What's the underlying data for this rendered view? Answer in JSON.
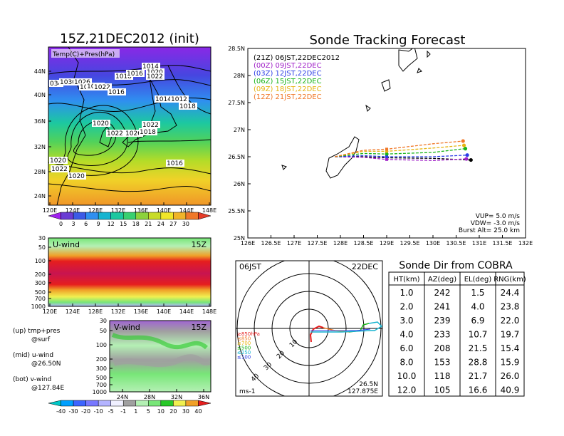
{
  "map_panel": {
    "title": "15Z,21DEC2012 (init)",
    "field_label": "Temp(C)+Pres(hPa)",
    "lon_ticks": [
      "120E",
      "124E",
      "128E",
      "132E",
      "136E",
      "140E",
      "144E",
      "148E"
    ],
    "lat_ticks": [
      "44N",
      "40N",
      "36N",
      "32N",
      "28N",
      "24N"
    ],
    "isobar_labels": [
      "034",
      "1030",
      "1026",
      "1024",
      "1020",
      "1022",
      "1018",
      "1016",
      "1014",
      "1020",
      "1022",
      "1016",
      "1014",
      "1012",
      "1018",
      "1020",
      "1022",
      "1026",
      "1022",
      "1018",
      "1016",
      "1020",
      "1022",
      "1020"
    ],
    "colorbar_ticks": [
      "0",
      "3",
      "6",
      "9",
      "12",
      "15",
      "18",
      "21",
      "24",
      "27",
      "30"
    ],
    "colorbar_colors": [
      "#a020f0",
      "#6a3cd4",
      "#3c5ae6",
      "#2f8ff0",
      "#17b4d0",
      "#1cc8a0",
      "#38d070",
      "#8cd23c",
      "#c8dc28",
      "#f0e628",
      "#f0b428",
      "#f07828",
      "#e63c28"
    ]
  },
  "uwind_panel": {
    "title": "U-wind",
    "time_label": "15Z",
    "p_ticks": [
      "30",
      "50",
      "100",
      "200",
      "300",
      "500",
      "700",
      "1000"
    ],
    "lon_ticks": [
      "120E",
      "124E",
      "128E",
      "132E",
      "136E",
      "140E",
      "144E",
      "148E"
    ]
  },
  "vwind_panel": {
    "title": "V-wind",
    "time_label": "15Z",
    "p_ticks": [
      "30",
      "50",
      "100",
      "200",
      "300",
      "500",
      "700",
      "1000"
    ],
    "lat_ticks": [
      "24N",
      "28N",
      "32N",
      "36N"
    ]
  },
  "legend_text": [
    "(up) tmp+pres",
    "@surf",
    "(mid) u-wind",
    "@26.50N",
    "(bot) v-wind",
    "@127.84E"
  ],
  "wind_colorbar": {
    "ticks": [
      "-40",
      "-30",
      "-20",
      "-10",
      "-5",
      "-1",
      "1",
      "5",
      "10",
      "20",
      "30",
      "40"
    ],
    "colors": [
      "#00c8c8",
      "#00a0ff",
      "#3c64ff",
      "#7878ff",
      "#b4b4ff",
      "#f0f0ff",
      "#a0a0a0",
      "#b4f0b4",
      "#78e678",
      "#28c828",
      "#f0f050",
      "#f0a028",
      "#e61e1e"
    ]
  },
  "tracking_panel": {
    "title": "Sonde Tracking Forecast",
    "legend": [
      {
        "label": "(21Z)  06JST,22DEC2012",
        "color": "#000000"
      },
      {
        "label": "(00Z)  09JST,22DEC",
        "color": "#a020c8"
      },
      {
        "label": "(03Z)  12JST,22DEC",
        "color": "#2a3ce6"
      },
      {
        "label": "(06Z)  15JST,22DEC",
        "color": "#19b419"
      },
      {
        "label": "(09Z)  18JST,22DEC",
        "color": "#e6b414"
      },
      {
        "label": "(12Z)  21JST,22DEC",
        "color": "#f07828"
      }
    ],
    "lat_ticks": [
      "28.5N",
      "28N",
      "27.5N",
      "27N",
      "26.5N",
      "26N",
      "25.5N",
      "25N"
    ],
    "lon_ticks": [
      "126E",
      "126.5E",
      "127E",
      "127.5E",
      "128E",
      "128.5E",
      "129E",
      "129.5E",
      "130E",
      "130.5E",
      "131E",
      "131.5E",
      "132E"
    ],
    "params": [
      "VUP=  5.0  m/s",
      "VDW= -3.0  m/s",
      "Burst Alt=  25.0  km"
    ]
  },
  "cobra_panel": {
    "time_label": "06JST",
    "date_label": "22DEC",
    "range_labels": [
      "10",
      "20",
      "30",
      "40"
    ],
    "layer_legend": [
      {
        "label": "≥850hPa",
        "color": "#e61e1e"
      },
      {
        "label": "≤850",
        "color": "#f07828"
      },
      {
        "label": "≤700",
        "color": "#e6b414"
      },
      {
        "label": "≤500",
        "color": "#19b419"
      },
      {
        "label": "≤250",
        "color": "#17b4d0"
      },
      {
        "label": "≤100",
        "color": "#2a3ce6"
      }
    ],
    "unit": "ms-1",
    "location_lat": "26.5N",
    "location_lon": "127.875E"
  },
  "dir_table": {
    "title": "Sonde Dir from COBRA",
    "headers": [
      "HT(km)",
      "AZ(deg)",
      "EL(deg)",
      "RNG(km)"
    ],
    "rows": [
      [
        "1.0",
        "242",
        "1.5",
        "24.4"
      ],
      [
        "2.0",
        "241",
        "4.0",
        "23.8"
      ],
      [
        "3.0",
        "239",
        "6.9",
        "22.0"
      ],
      [
        "4.0",
        "233",
        "10.7",
        "19.7"
      ],
      [
        "6.0",
        "208",
        "21.5",
        "15.4"
      ],
      [
        "8.0",
        "153",
        "28.8",
        "15.9"
      ],
      [
        "10.0",
        "118",
        "21.7",
        "26.0"
      ],
      [
        "12.0",
        "105",
        "16.6",
        "40.9"
      ]
    ]
  },
  "chart_data": [
    {
      "type": "line",
      "title": "Sonde Tracking Forecast",
      "xlim": [
        126,
        132
      ],
      "ylim": [
        25,
        28.5
      ],
      "series": [
        {
          "name": "(21Z)  06JST,22DEC2012",
          "points": [
            [
              127.88,
              26.5
            ],
            [
              128.5,
              26.5
            ],
            [
              129.0,
              26.48
            ],
            [
              130.0,
              26.47
            ],
            [
              130.82,
              26.44
            ]
          ]
        },
        {
          "name": "(00Z)  09JST,22DEC",
          "points": [
            [
              127.88,
              26.5
            ],
            [
              128.5,
              26.49
            ],
            [
              129.0,
              26.45
            ],
            [
              130.0,
              26.43
            ],
            [
              130.72,
              26.46
            ]
          ]
        },
        {
          "name": "(03Z)  12JST,22DEC",
          "points": [
            [
              127.88,
              26.5
            ],
            [
              128.5,
              26.52
            ],
            [
              129.0,
              26.5
            ],
            [
              130.0,
              26.5
            ],
            [
              130.74,
              26.53
            ]
          ]
        },
        {
          "name": "(06Z)  15JST,22DEC",
          "points": [
            [
              127.88,
              26.5
            ],
            [
              128.5,
              26.56
            ],
            [
              129.0,
              26.55
            ],
            [
              130.0,
              26.58
            ],
            [
              130.7,
              26.65
            ]
          ]
        },
        {
          "name": "(09Z)  18JST,22DEC",
          "points": [
            [
              127.88,
              26.5
            ],
            [
              128.5,
              26.6
            ],
            [
              129.0,
              26.6
            ],
            [
              130.0,
              26.66
            ],
            [
              130.67,
              26.71
            ]
          ]
        },
        {
          "name": "(12Z)  21JST,22DEC",
          "points": [
            [
              127.88,
              26.5
            ],
            [
              128.5,
              26.62
            ],
            [
              129.0,
              26.64
            ],
            [
              130.0,
              26.74
            ],
            [
              130.65,
              26.79
            ]
          ]
        }
      ]
    },
    {
      "type": "table",
      "title": "Sonde Dir from COBRA",
      "columns": [
        "HT(km)",
        "AZ(deg)",
        "EL(deg)",
        "RNG(km)"
      ],
      "rows": [
        [
          1.0,
          242,
          1.5,
          24.4
        ],
        [
          2.0,
          241,
          4.0,
          23.8
        ],
        [
          3.0,
          239,
          6.9,
          22.0
        ],
        [
          4.0,
          233,
          10.7,
          19.7
        ],
        [
          6.0,
          208,
          21.5,
          15.4
        ],
        [
          8.0,
          153,
          28.8,
          15.9
        ],
        [
          10.0,
          118,
          21.7,
          26.0
        ],
        [
          12.0,
          105,
          16.6,
          40.9
        ]
      ]
    }
  ]
}
